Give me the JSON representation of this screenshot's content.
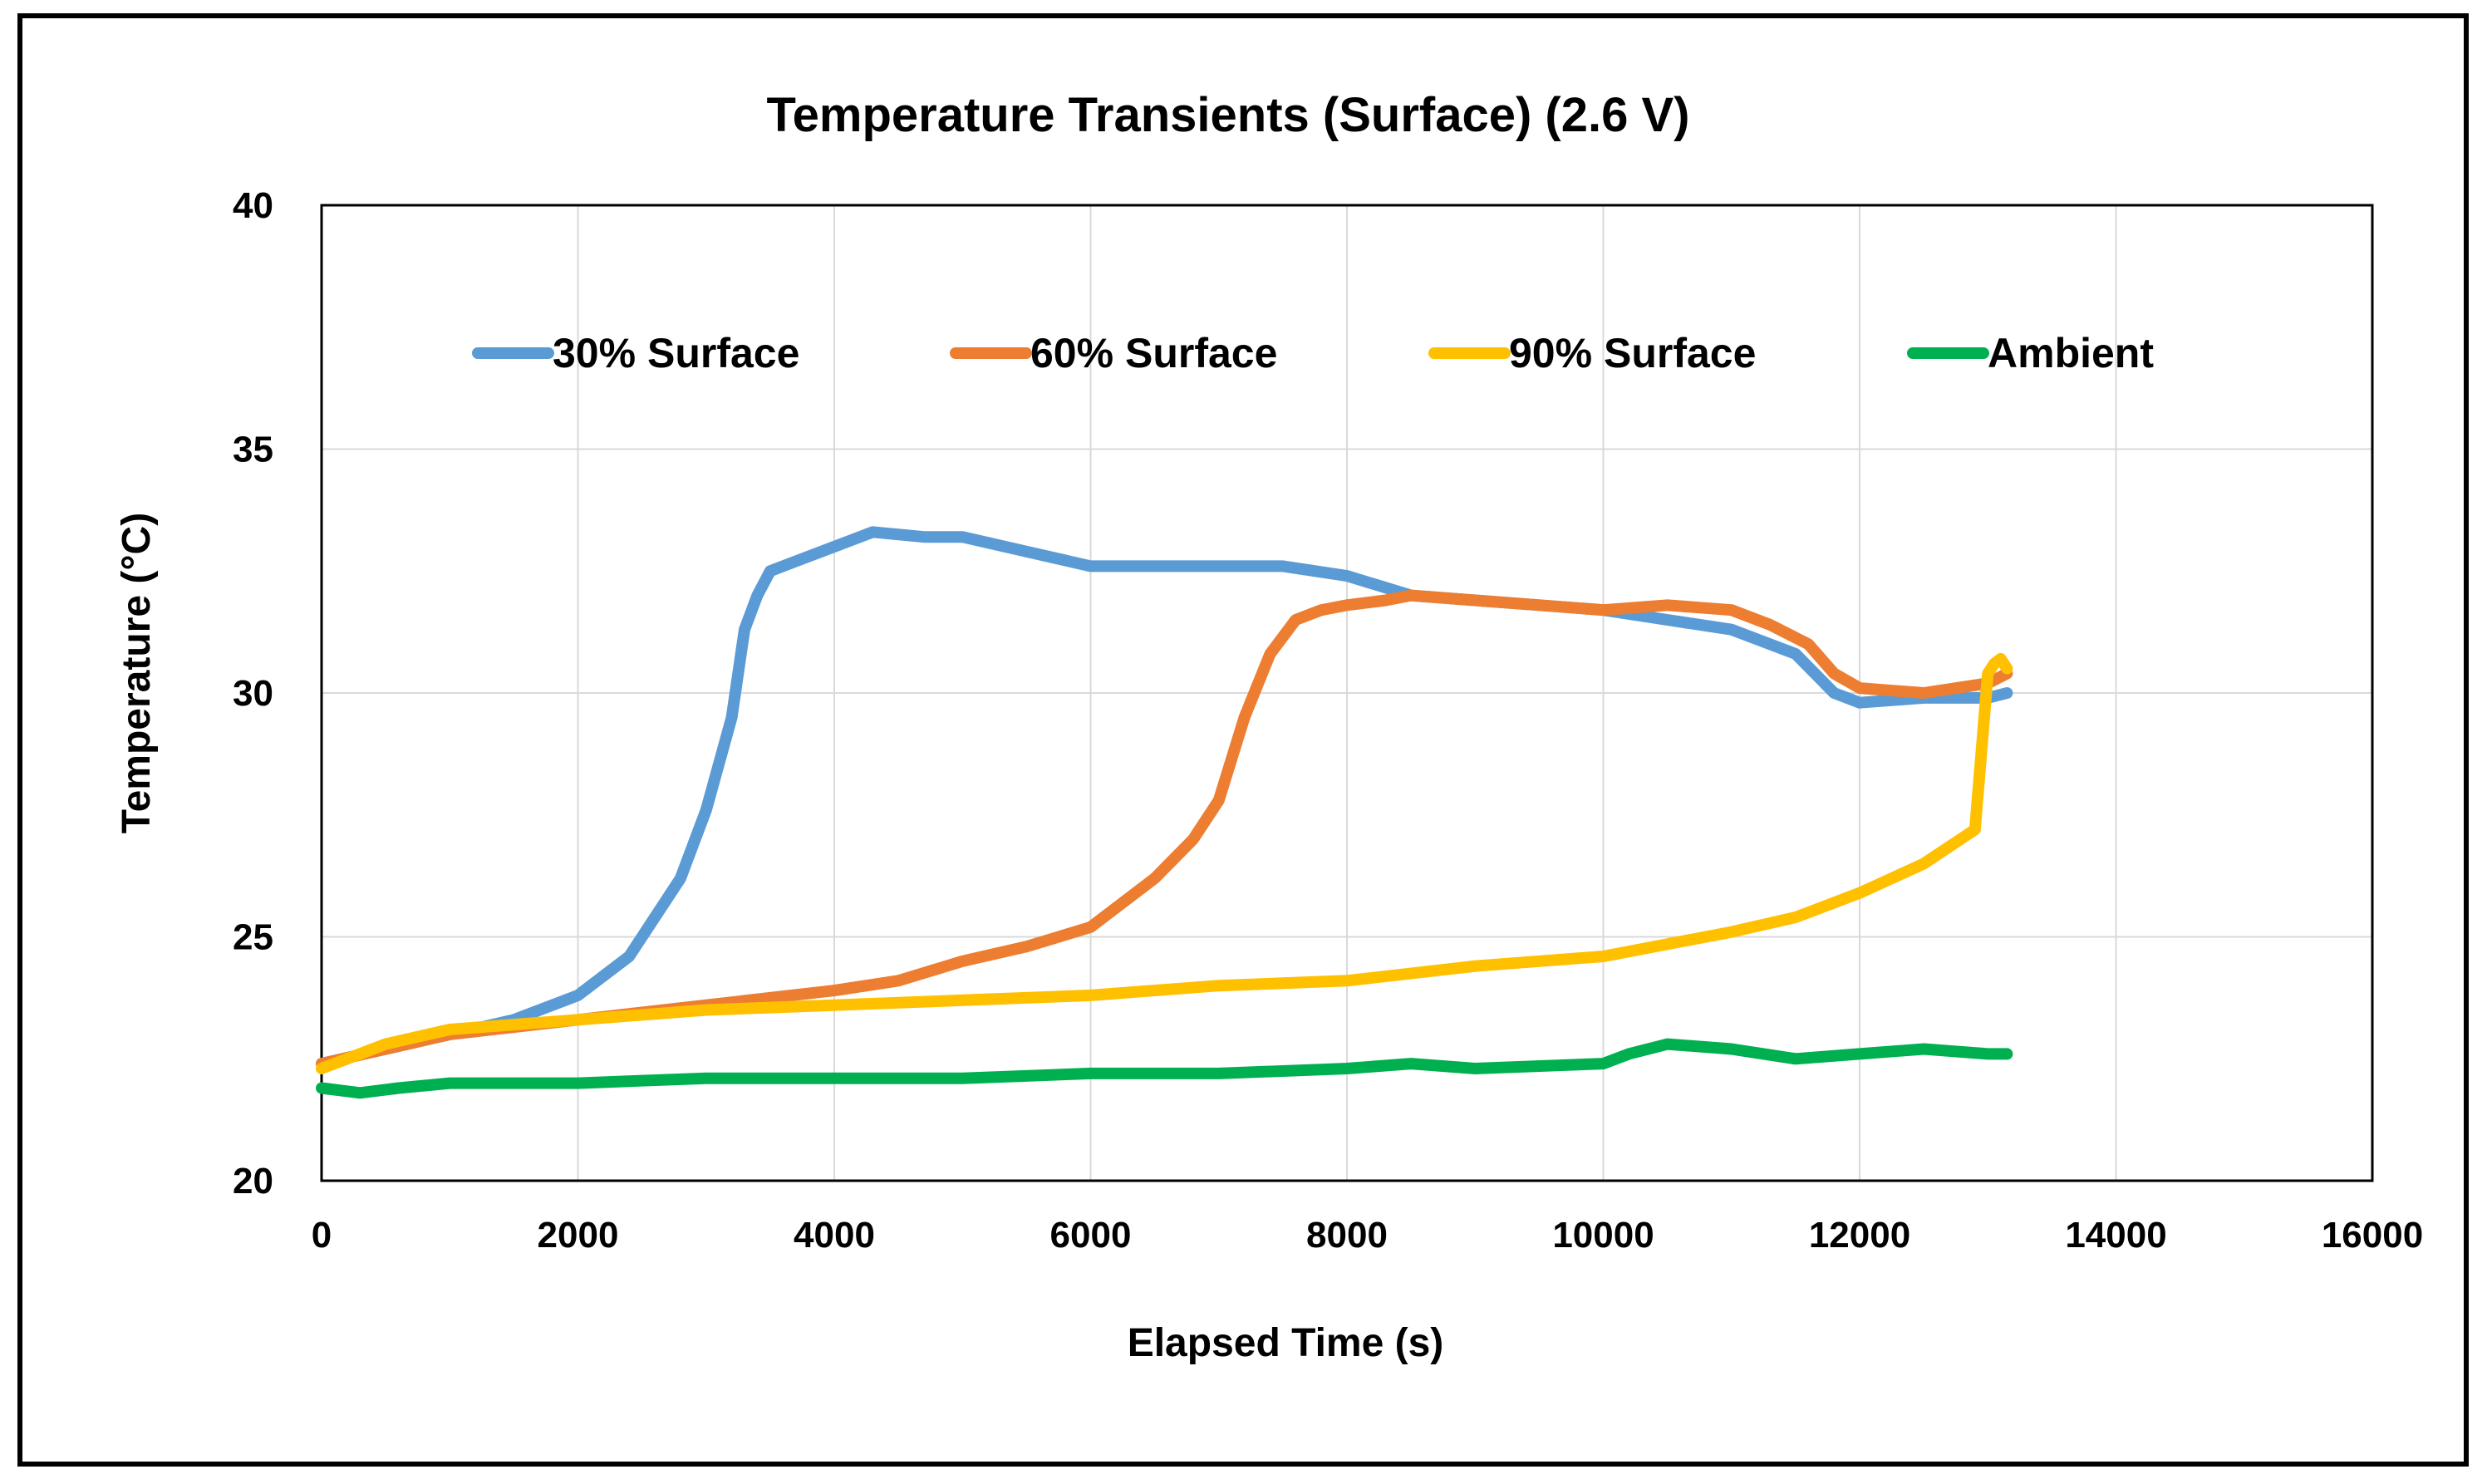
{
  "chart_data": {
    "type": "line",
    "title": "Temperature Transients (Surface) (2.6 V)",
    "xlabel": "Elapsed Time (s)",
    "ylabel": "Temperature (°C)",
    "xlim": [
      0,
      16000
    ],
    "ylim": [
      20,
      40
    ],
    "xticks": [
      0,
      2000,
      4000,
      6000,
      8000,
      10000,
      12000,
      14000,
      16000
    ],
    "yticks": [
      20,
      25,
      30,
      35,
      40
    ],
    "xtick_labels": [
      "0",
      "2000",
      "4000",
      "6000",
      "8000",
      "10000",
      "12000",
      "14000",
      "16000"
    ],
    "ytick_labels": [
      "20",
      "25",
      "30",
      "35",
      "40"
    ],
    "grid": true,
    "legend_position": "top",
    "series": [
      {
        "name": "30% Surface",
        "color": "#5B9BD5",
        "x": [
          0,
          500,
          1000,
          1500,
          2000,
          2400,
          2800,
          3000,
          3200,
          3300,
          3400,
          3500,
          3700,
          4000,
          4300,
          4700,
          5000,
          5500,
          6000,
          6500,
          7000,
          7500,
          8000,
          8500,
          9000,
          9500,
          10000,
          10500,
          11000,
          11500,
          11800,
          12000,
          12500,
          13000,
          13150
        ],
        "y": [
          22.4,
          22.7,
          23.0,
          23.3,
          23.8,
          24.6,
          26.2,
          27.6,
          29.5,
          31.3,
          32.0,
          32.5,
          32.7,
          33.0,
          33.3,
          33.2,
          33.2,
          32.9,
          32.6,
          32.6,
          32.6,
          32.6,
          32.4,
          32.0,
          31.9,
          31.8,
          31.7,
          31.5,
          31.3,
          30.8,
          30.0,
          29.8,
          29.9,
          29.9,
          30.0
        ]
      },
      {
        "name": "60% Surface",
        "color": "#ED7D31",
        "x": [
          0,
          500,
          1000,
          2000,
          3000,
          4000,
          4500,
          5000,
          5500,
          6000,
          6500,
          6800,
          7000,
          7200,
          7400,
          7600,
          7800,
          8000,
          8300,
          8500,
          9000,
          9500,
          10000,
          10500,
          11000,
          11300,
          11600,
          11800,
          12000,
          12500,
          13000,
          13150
        ],
        "y": [
          22.4,
          22.7,
          23.0,
          23.3,
          23.6,
          23.9,
          24.1,
          24.5,
          24.8,
          25.2,
          26.2,
          27.0,
          27.8,
          29.5,
          30.8,
          31.5,
          31.7,
          31.8,
          31.9,
          32.0,
          31.9,
          31.8,
          31.7,
          31.8,
          31.7,
          31.4,
          31.0,
          30.4,
          30.1,
          30.0,
          30.2,
          30.4
        ]
      },
      {
        "name": "90% Surface",
        "color": "#FFC000",
        "x": [
          0,
          500,
          1000,
          2000,
          3000,
          4000,
          5000,
          6000,
          7000,
          8000,
          9000,
          9500,
          10000,
          11000,
          11500,
          12000,
          12500,
          12900,
          13000,
          13050,
          13100,
          13150
        ],
        "y": [
          22.3,
          22.8,
          23.1,
          23.3,
          23.5,
          23.6,
          23.7,
          23.8,
          24.0,
          24.1,
          24.4,
          24.5,
          24.6,
          25.1,
          25.4,
          25.9,
          26.5,
          27.2,
          30.4,
          30.6,
          30.7,
          30.5
        ]
      },
      {
        "name": "Ambient",
        "color": "#00B050",
        "x": [
          0,
          300,
          600,
          1000,
          2000,
          3000,
          4000,
          5000,
          6000,
          7000,
          8000,
          8500,
          9000,
          10000,
          10200,
          10500,
          11000,
          11500,
          12000,
          12500,
          13000,
          13150
        ],
        "y": [
          21.9,
          21.8,
          21.9,
          22.0,
          22.0,
          22.1,
          22.1,
          22.1,
          22.2,
          22.2,
          22.3,
          22.4,
          22.3,
          22.4,
          22.6,
          22.8,
          22.7,
          22.5,
          22.6,
          22.7,
          22.6,
          22.6
        ]
      }
    ]
  }
}
